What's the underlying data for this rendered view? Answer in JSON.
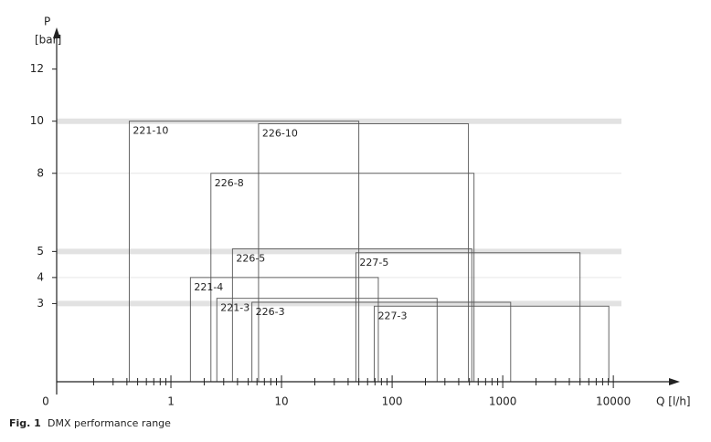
{
  "chart_data": {
    "type": "range",
    "y_label": "P",
    "y_unit": "[bar]",
    "x_label": "Q [l/h]",
    "origin_label": "0",
    "caption_number": "Fig. 1",
    "caption": "DMX performance range",
    "xscale": "log",
    "xlim": [
      0.1,
      40000
    ],
    "ylim": [
      0,
      13.6
    ],
    "xticks": [
      1,
      10,
      100,
      1000,
      10000
    ],
    "yticks": [
      3,
      4,
      5,
      8,
      10,
      12
    ],
    "grid": true,
    "color": "#555555",
    "series": [
      {
        "name": "221-10",
        "q_min": 0.42,
        "q_max": 50,
        "p_max": 10
      },
      {
        "name": "226-10",
        "q_min": 6.2,
        "q_max": 490,
        "p_max": 9.9
      },
      {
        "name": "226-8",
        "q_min": 2.3,
        "q_max": 550,
        "p_max": 8
      },
      {
        "name": "226-5",
        "q_min": 3.6,
        "q_max": 525,
        "p_max": 5.1
      },
      {
        "name": "227-5",
        "q_min": 47,
        "q_max": 5000,
        "p_max": 4.95
      },
      {
        "name": "221-4",
        "q_min": 1.5,
        "q_max": 75,
        "p_max": 4
      },
      {
        "name": "221-3",
        "q_min": 2.6,
        "q_max": 255,
        "p_max": 3.2
      },
      {
        "name": "226-3",
        "q_min": 5.4,
        "q_max": 1180,
        "p_max": 3.05
      },
      {
        "name": "227-3",
        "q_min": 69,
        "q_max": 9100,
        "p_max": 2.9
      }
    ]
  }
}
